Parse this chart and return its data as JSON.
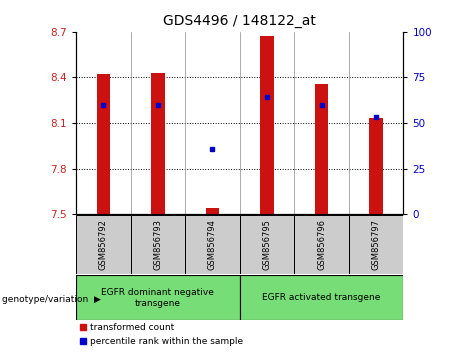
{
  "title": "GDS4496 / 148122_at",
  "samples": [
    "GSM856792",
    "GSM856793",
    "GSM856794",
    "GSM856795",
    "GSM856796",
    "GSM856797"
  ],
  "bar_tops": [
    8.42,
    8.43,
    7.54,
    8.67,
    8.36,
    8.13
  ],
  "bar_bottom": 7.5,
  "percentile_values": [
    8.22,
    8.22,
    7.93,
    8.27,
    8.22,
    8.14
  ],
  "ylim": [
    7.5,
    8.7
  ],
  "yticks_left": [
    7.5,
    7.8,
    8.1,
    8.4,
    8.7
  ],
  "yticks_right": [
    0,
    25,
    50,
    75,
    100
  ],
  "bar_color": "#cc1111",
  "dot_color": "#0000cc",
  "group1_samples": [
    0,
    1,
    2
  ],
  "group2_samples": [
    3,
    4,
    5
  ],
  "group1_label": "EGFR dominant negative\ntransgene",
  "group2_label": "EGFR activated transgene",
  "group_bg_color": "#77dd77",
  "legend_red_label": "transformed count",
  "legend_blue_label": "percentile rank within the sample",
  "bar_width": 0.25,
  "title_fontsize": 10
}
